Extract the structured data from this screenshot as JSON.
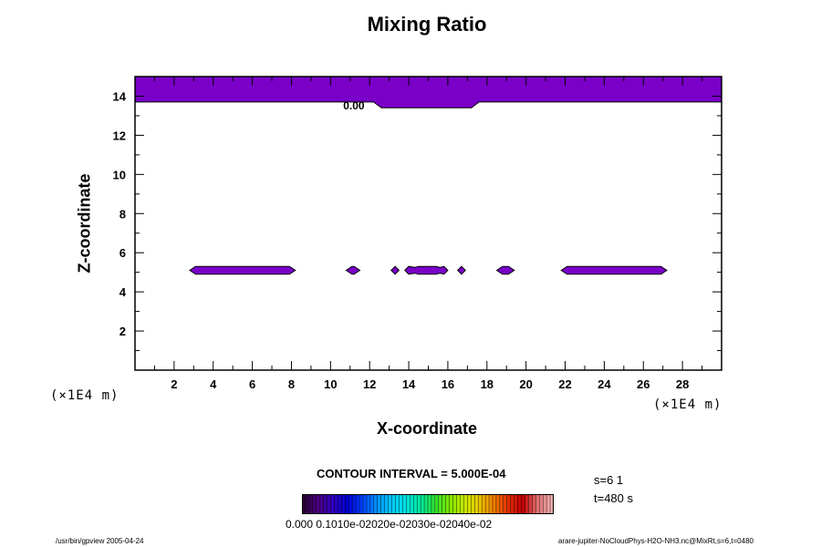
{
  "figure": {
    "footer_left": "/usr/bin/gpview 2005-04-24",
    "footer_right": "arare-jupiter-NoCloudPhys-H2O-NH3.nc@MixRt,s=6,t=0480",
    "contour_interval": "CONTOUR INTERVAL = 5.000E-04",
    "info_s": "s=6 1",
    "info_t": "t=480 s",
    "x_unit": "(×1E4 m)",
    "z_unit": "(×1E4 m)",
    "colorbar_labels": "0.000 0.1010e-02020e-02030e-02040e-02",
    "fill_color": "#7a00c8"
  },
  "chart_data": {
    "type": "contour",
    "title": "Mixing Ratio",
    "xlabel": "X-coordinate",
    "ylabel": "Z-coordinate",
    "xlim": [
      0,
      30
    ],
    "ylim": [
      0,
      15
    ],
    "xticks": [
      2,
      4,
      6,
      8,
      10,
      12,
      14,
      16,
      18,
      20,
      22,
      24,
      26,
      28
    ],
    "yticks": [
      2,
      4,
      6,
      8,
      10,
      12,
      14
    ],
    "contour_label": "0.00",
    "filled_regions": [
      {
        "name": "top-layer",
        "points": [
          [
            0,
            15
          ],
          [
            30,
            15
          ],
          [
            30,
            13.7
          ],
          [
            17.6,
            13.7
          ],
          [
            17.2,
            13.4
          ],
          [
            12.6,
            13.4
          ],
          [
            12.2,
            13.7
          ],
          [
            0,
            13.7
          ]
        ]
      },
      {
        "name": "blob-a",
        "points": [
          [
            2.8,
            5.1
          ],
          [
            3.1,
            5.3
          ],
          [
            7.9,
            5.3
          ],
          [
            8.2,
            5.1
          ],
          [
            7.9,
            4.9
          ],
          [
            3.1,
            4.9
          ]
        ]
      },
      {
        "name": "blob-b",
        "points": [
          [
            10.8,
            5.1
          ],
          [
            11.1,
            5.3
          ],
          [
            11.2,
            5.3
          ],
          [
            11.5,
            5.1
          ],
          [
            11.2,
            4.9
          ],
          [
            11.1,
            4.9
          ]
        ]
      },
      {
        "name": "blob-c",
        "points": [
          [
            13.1,
            5.1
          ],
          [
            13.3,
            5.3
          ],
          [
            13.5,
            5.1
          ],
          [
            13.3,
            4.9
          ]
        ]
      },
      {
        "name": "blob-d",
        "points": [
          [
            13.8,
            5.1
          ],
          [
            14.0,
            5.3
          ],
          [
            14.3,
            5.25
          ],
          [
            14.5,
            5.3
          ],
          [
            15.4,
            5.3
          ],
          [
            15.6,
            5.25
          ],
          [
            15.8,
            5.3
          ],
          [
            16.0,
            5.1
          ],
          [
            15.8,
            4.9
          ],
          [
            15.6,
            4.95
          ],
          [
            15.4,
            4.9
          ],
          [
            14.5,
            4.9
          ],
          [
            14.3,
            4.95
          ],
          [
            14.0,
            4.9
          ]
        ]
      },
      {
        "name": "blob-e",
        "points": [
          [
            16.5,
            5.1
          ],
          [
            16.7,
            5.3
          ],
          [
            16.9,
            5.1
          ],
          [
            16.7,
            4.9
          ]
        ]
      },
      {
        "name": "blob-f",
        "points": [
          [
            18.5,
            5.1
          ],
          [
            18.8,
            5.3
          ],
          [
            19.1,
            5.3
          ],
          [
            19.4,
            5.1
          ],
          [
            19.1,
            4.9
          ],
          [
            18.8,
            4.9
          ]
        ]
      },
      {
        "name": "blob-g",
        "points": [
          [
            21.8,
            5.1
          ],
          [
            22.1,
            5.3
          ],
          [
            26.9,
            5.3
          ],
          [
            27.2,
            5.1
          ],
          [
            26.9,
            4.9
          ],
          [
            22.1,
            4.9
          ]
        ]
      }
    ],
    "grid": false,
    "legend": "none",
    "colormap": [
      "#2a0033",
      "#4a0080",
      "#3000c0",
      "#0000d0",
      "#0040ff",
      "#0090ff",
      "#00c8ff",
      "#00e0e0",
      "#00e8a0",
      "#30e030",
      "#80e800",
      "#c8e800",
      "#e8c800",
      "#f08000",
      "#e03000",
      "#c00000",
      "#e07070",
      "#f0b0b0"
    ]
  }
}
